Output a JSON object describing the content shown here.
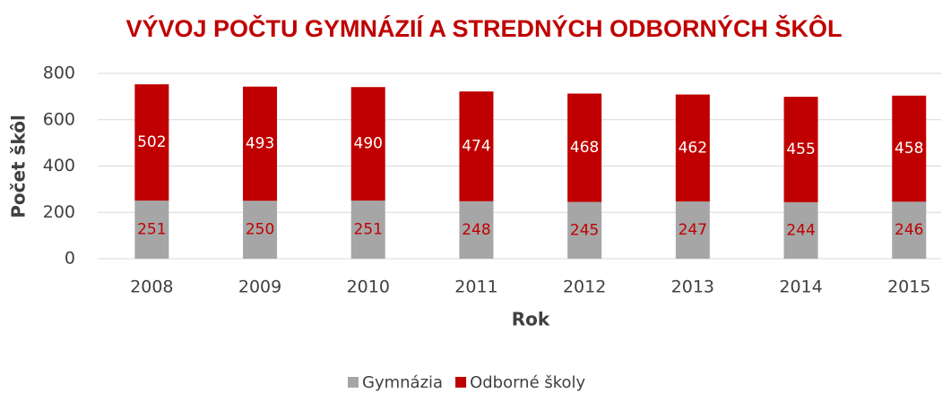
{
  "chart_data": {
    "type": "stacked_bar",
    "title": "VÝVOJ POČTU GYMNÁZIÍ A STREDNÝCH ODBORNÝCH ŠKÔL",
    "x_label": "Rok",
    "y_label": "Počet škôl",
    "categories": [
      "2008",
      "2009",
      "2010",
      "2011",
      "2012",
      "2013",
      "2014",
      "2015"
    ],
    "series": [
      {
        "name": "Gymnázia",
        "color": "#a6a6a6",
        "label_color": "#c00000",
        "values": [
          251,
          250,
          251,
          248,
          245,
          247,
          244,
          246
        ]
      },
      {
        "name": "Odborné školy",
        "color": "#c00000",
        "label_color": "#ffffff",
        "values": [
          502,
          493,
          490,
          474,
          468,
          462,
          455,
          458
        ]
      }
    ],
    "ylim": [
      0,
      800
    ],
    "yticks": [
      0,
      200,
      400,
      600,
      800
    ],
    "grid": true,
    "legend": "bottom"
  }
}
